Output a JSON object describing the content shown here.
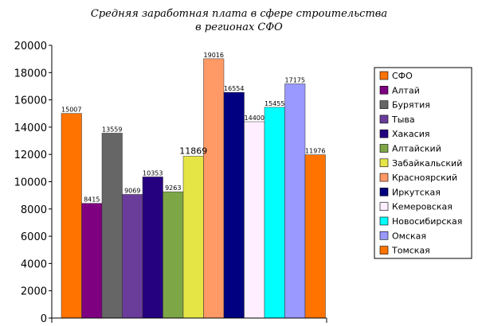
{
  "chart_data": {
    "type": "bar",
    "title": [
      "Средняя заработная плата в сфере строительства",
      "в регионах СФО"
    ],
    "xlabel": "",
    "ylabel": "",
    "ylim": [
      0,
      20000
    ],
    "yticks": [
      0,
      2000,
      4000,
      6000,
      8000,
      10000,
      12000,
      14000,
      16000,
      18000,
      20000
    ],
    "grid": false,
    "legend_position": "right",
    "categories": [
      "СФО",
      "Алтай",
      "Бурятия",
      "Тыва",
      "Хакасия",
      "Алтайский",
      "Забайкальский",
      "Красноярский",
      "Иркутская",
      "Кемеровская",
      "Новосибирская",
      "Омская",
      "Томская"
    ],
    "values": [
      15007,
      8415,
      13559,
      9069,
      10353,
      9263,
      11869,
      19016,
      16554,
      14400,
      15455,
      17175,
      11976
    ],
    "colors": [
      "#ff7300",
      "#7e0080",
      "#666666",
      "#6a3d9a",
      "#25007f",
      "#7da647",
      "#e5e546",
      "#ff9966",
      "#000080",
      "#ffeeff",
      "#00ffff",
      "#9999ff",
      "#ff7300"
    ]
  }
}
